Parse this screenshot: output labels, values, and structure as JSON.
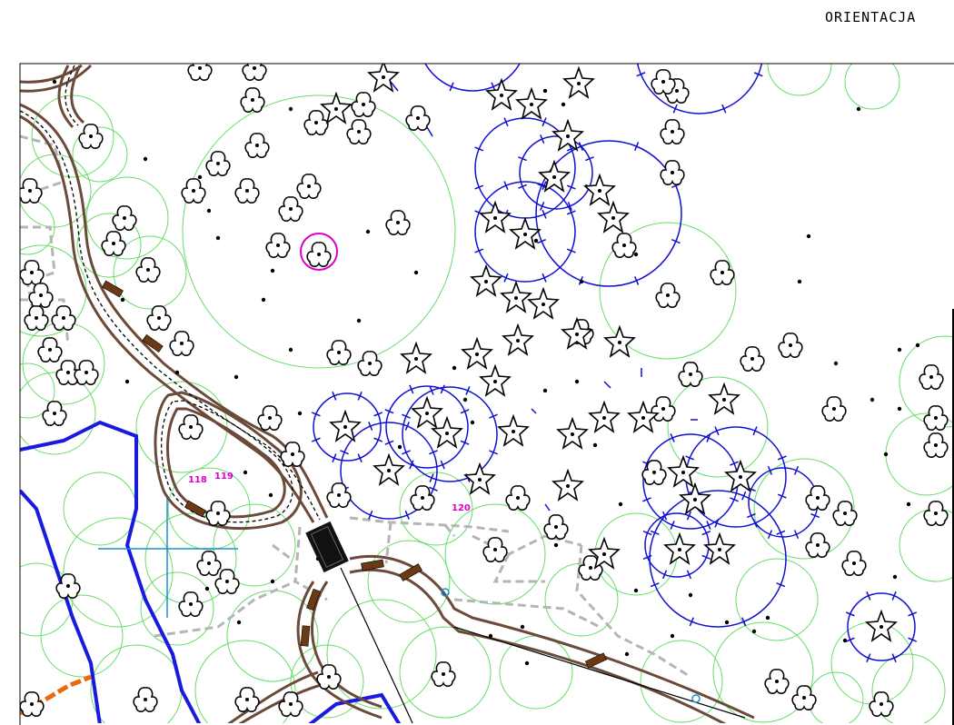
{
  "title": "ORIENTACJA",
  "colors": {
    "canopy": "#66dd66",
    "tree_ring": "#1010d0",
    "highlight": "#dd00cc",
    "path": "#6b4a3a",
    "bench": "#6b3a14",
    "paving": "#b5b5b5",
    "boundary": "#1a1adf",
    "axis": "#1a8fd0",
    "hedge": "#e86a10"
  },
  "labels": {
    "l118": "118",
    "l119": "119",
    "l120": "120"
  },
  "icons": {
    "deciduous": "flower-tree-icon",
    "conifer": "star-tree-icon"
  }
}
